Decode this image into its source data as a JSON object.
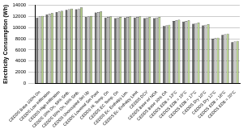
{
  "chart_data": {
    "type": "bar",
    "y_label": "Electricity Consumption (Wh)",
    "categories": [
      "CEDDS Base 100% On",
      "CEDDS Low Infiltration",
      "CEDDS High Infiltration",
      "CEDDS 10% On, 50% Setb.",
      "CEDDS 50% On, 50% Setb.",
      "CEDDS Unoccupied Set Up",
      "CEDDS Lowered Set Point",
      "CEDDS Hi. Temp. On",
      "CEDDS EC Temp. On",
      "CEDDS Ec. Enthalpy Lim.",
      "CEDDS Ec. Enthalpy Limit",
      "CEDDS DCV",
      "CEDDS Base w/ NOA",
      "CEDDS Base 10% OA",
      "CEDDS EDB = 13°C",
      "CEDDS EDB = 15°C",
      "CEDDS EDB = 17°C",
      "CEDDS Dry 10°C",
      "CEDDS Dry 12°C",
      "CEDDS EDB = 18°C",
      "CEDDS EDB = 20°C"
    ],
    "series": [
      {
        "color": "#606060",
        "values": [
          11800,
          12400,
          12800,
          13200,
          13300,
          11900,
          12700,
          11800,
          11700,
          11800,
          11800,
          11700,
          11700,
          10300,
          11200,
          11100,
          10700,
          10400,
          8000,
          8700,
          7400
        ]
      },
      {
        "color": "#c8c8c8",
        "values": [
          12000,
          12500,
          12900,
          13300,
          13400,
          12000,
          12800,
          11900,
          11800,
          11900,
          11900,
          11800,
          11800,
          10400,
          11300,
          11200,
          10800,
          10500,
          8100,
          8800,
          7500
        ]
      },
      {
        "color": "#b5d08a",
        "values": [
          12100,
          12600,
          13000,
          13400,
          13600,
          12100,
          12900,
          12000,
          11900,
          12000,
          12000,
          11900,
          11900,
          10500,
          11400,
          11300,
          10900,
          10600,
          8200,
          8900,
          7600
        ]
      }
    ],
    "ylim": [
      0,
      14000
    ],
    "yticks": [
      0,
      2000,
      4000,
      6000,
      8000,
      10000,
      12000,
      14000
    ],
    "grid": true
  }
}
